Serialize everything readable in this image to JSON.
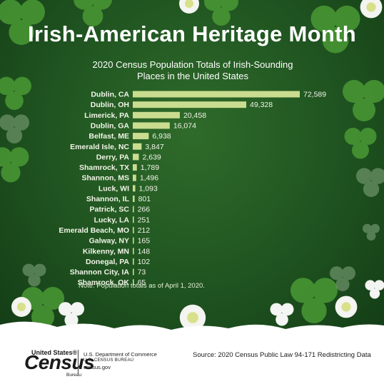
{
  "title": "Irish-American Heritage Month",
  "subtitle": "2020 Census Population Totals of Irish-Sounding Places in the United States",
  "note": "Note: Population totals as of April 1, 2020.",
  "source": "Source: 2020 Census Public Law 94-171 Redistricting Data",
  "logo": {
    "united_states": "United States®",
    "census": "Census",
    "bureau": "Bureau"
  },
  "department": {
    "line1": "U.S. Department of Commerce",
    "line2": "U.S. CENSUS BUREAU",
    "line3": "census.gov"
  },
  "colors": {
    "background": "#1f5320",
    "bar": "#c9dc8f",
    "text": "#ffffff"
  },
  "chart_data": {
    "type": "bar",
    "orientation": "horizontal",
    "title": "2020 Census Population Totals of Irish-Sounding Places in the United States",
    "categories": [
      "Dublin, CA",
      "Dublin, OH",
      "Limerick, PA",
      "Dublin, GA",
      "Belfast, ME",
      "Emerald Isle, NC",
      "Derry, PA",
      "Shamrock, TX",
      "Shannon, MS",
      "Luck, WI",
      "Shannon, IL",
      "Patrick, SC",
      "Lucky, LA",
      "Emerald Beach, MO",
      "Galway, NY",
      "Kilkenny, MN",
      "Donegal, PA",
      "Shannon City, IA",
      "Shamrock, OK"
    ],
    "values": [
      72589,
      49328,
      20458,
      16074,
      6938,
      3847,
      2639,
      1789,
      1496,
      1093,
      801,
      266,
      251,
      212,
      165,
      148,
      102,
      73,
      65
    ],
    "value_labels": [
      "72,589",
      "49,328",
      "20,458",
      "16,074",
      "6,938",
      "3,847",
      "2,639",
      "1,789",
      "1,496",
      "1,093",
      "801",
      "266",
      "251",
      "212",
      "165",
      "148",
      "102",
      "73",
      "65"
    ],
    "xlim": [
      0,
      72589
    ],
    "grid": false,
    "legend": "none"
  }
}
